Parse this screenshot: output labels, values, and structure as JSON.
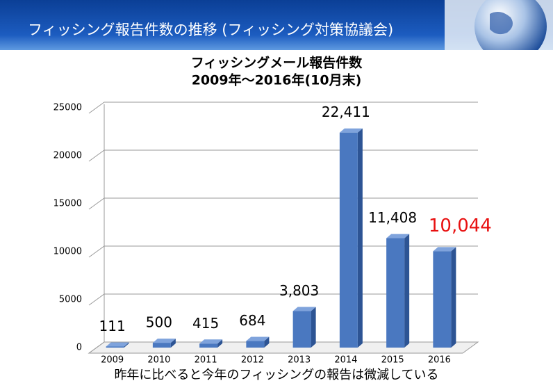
{
  "header": {
    "title": "フィッシング報告件数の推移 (フィッシング対策協議会)"
  },
  "chart_data": {
    "type": "bar",
    "title": "フィッシングメール報告件数",
    "subtitle": "2009年～2016年(10月末)",
    "categories": [
      "2009",
      "2010",
      "2011",
      "2012",
      "2013",
      "2014",
      "2015",
      "2016"
    ],
    "values": [
      111,
      500,
      415,
      684,
      3803,
      22411,
      11408,
      10044
    ],
    "value_labels": [
      "111",
      "500",
      "415",
      "684",
      "3,803",
      "22,411",
      "11,408",
      "10,044"
    ],
    "value_label_colors": [
      "#000000",
      "#000000",
      "#000000",
      "#000000",
      "#000000",
      "#000000",
      "#000000",
      "#e81010"
    ],
    "color": "#4a78c0",
    "ylim": [
      0,
      25000
    ],
    "yticks": [
      0,
      5000,
      10000,
      15000,
      20000,
      25000
    ],
    "grid": true,
    "note": "昨年に比べると今年のフィッシングの報告は微減している"
  }
}
